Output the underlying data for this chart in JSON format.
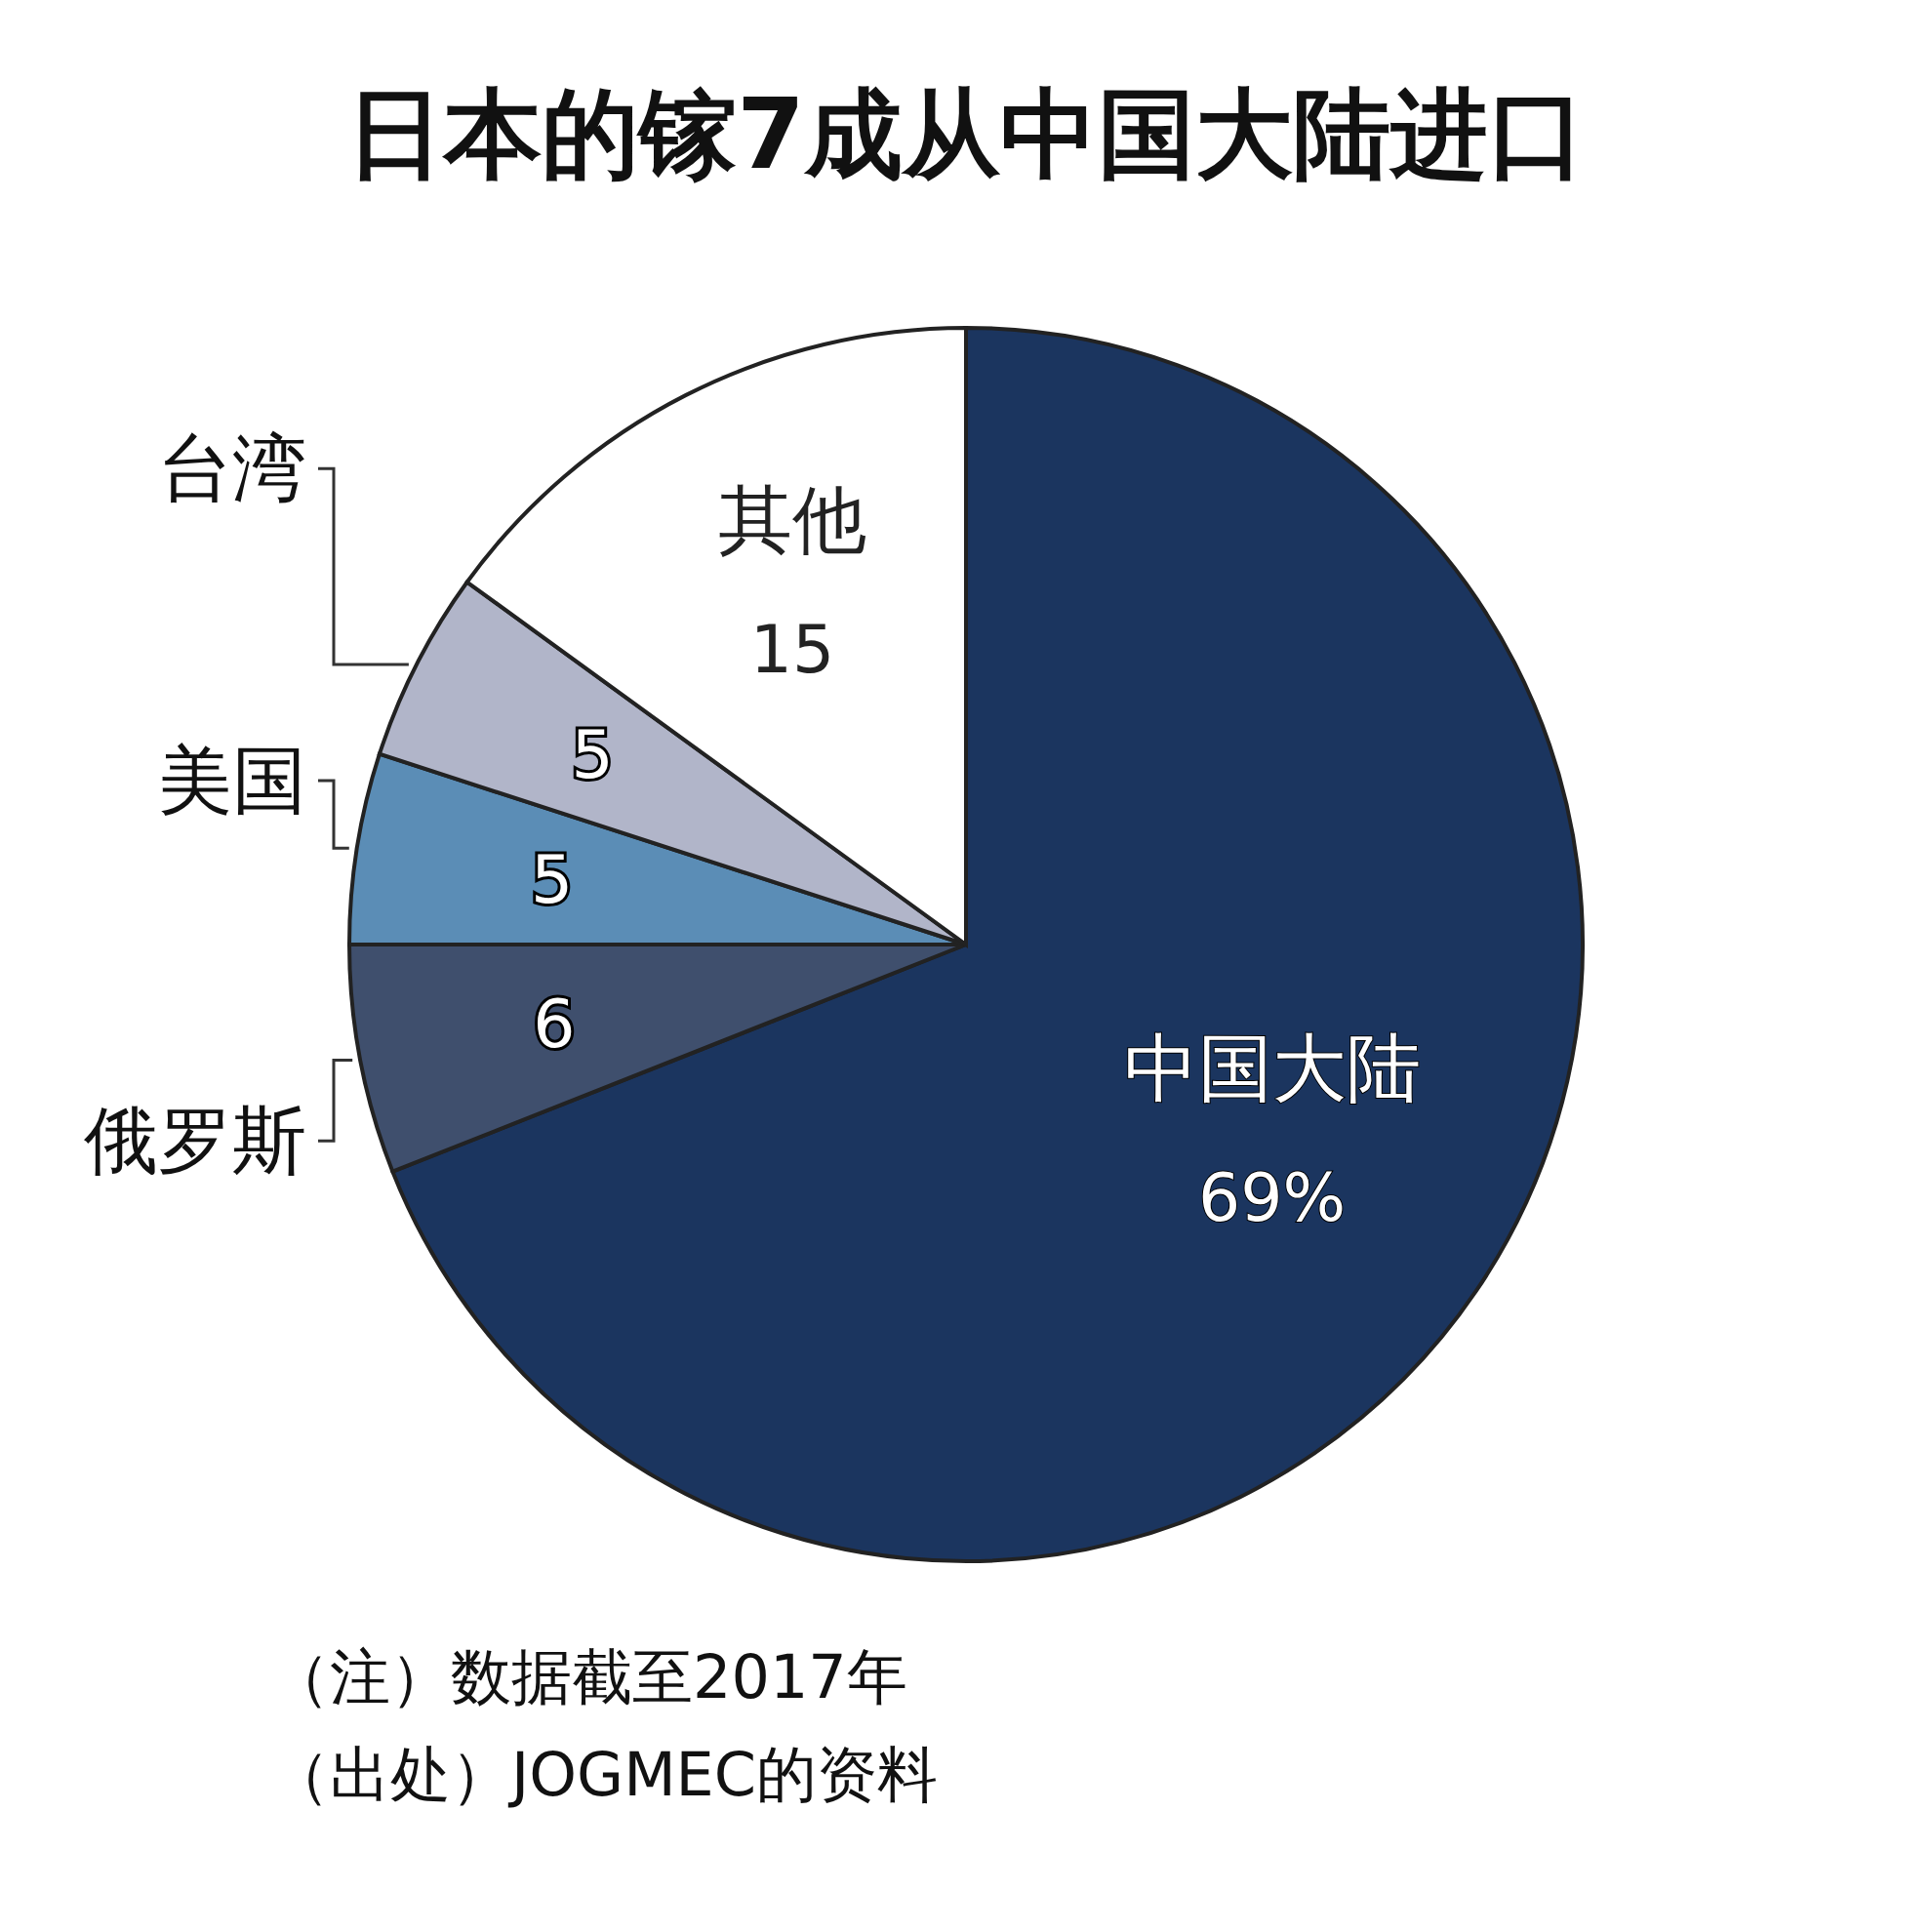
{
  "chart_data": {
    "type": "pie",
    "title": "日本的镓7成从中国大陆进口",
    "categories": [
      "中国大陆",
      "俄罗斯",
      "美国",
      "台湾",
      "其他"
    ],
    "values": [
      69,
      6,
      5,
      5,
      15
    ],
    "value_labels": [
      "69%",
      "6",
      "5",
      "5",
      "15"
    ],
    "colors": [
      "#1b355f",
      "#3f4f6d",
      "#5b8db6",
      "#b1b5c9",
      "#ffffff"
    ],
    "annotations": [
      "（注）数据截至2017年",
      "（出处）JOGMEC的资料"
    ]
  }
}
